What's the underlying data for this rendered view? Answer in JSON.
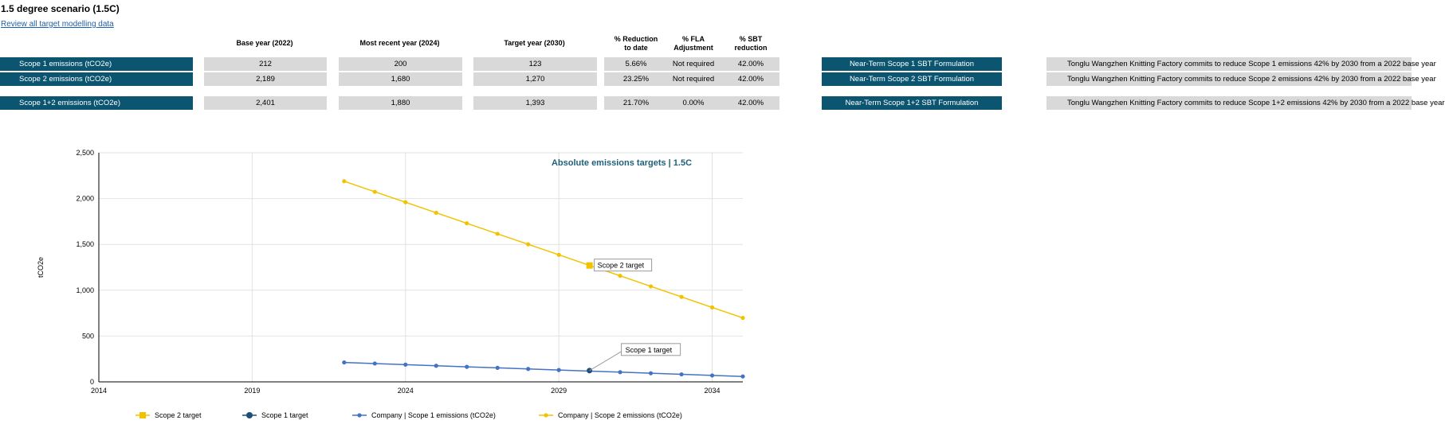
{
  "page": {
    "title": "1.5 degree scenario (1.5C)",
    "review_link": "Review all target modelling data"
  },
  "table": {
    "headers": {
      "base": "Base year (2022)",
      "recent": "Most recent year (2024)",
      "target": "Target year (2030)",
      "reduction_l1": "% Reduction",
      "reduction_l2": "to date",
      "fla_l1": "% FLA",
      "fla_l2": "Adjustment",
      "sbt_l1": "% SBT",
      "sbt_l2": "reduction"
    },
    "rows": [
      {
        "label": "Scope 1 emissions (tCO2e)",
        "base": "212",
        "recent": "200",
        "target": "123",
        "reduction": "5.66%",
        "fla": "Not required",
        "sbt": "42.00%",
        "button": "Near-Term Scope 1 SBT Formulation",
        "commitment": "Tonglu Wangzhen Knitting Factory  commits to reduce Scope 1 emissions 42% by 2030 from a 2022 base year"
      },
      {
        "label": "Scope 2 emissions (tCO2e)",
        "base": "2,189",
        "recent": "1,680",
        "target": "1,270",
        "reduction": "23.25%",
        "fla": "Not required",
        "sbt": "42.00%",
        "button": "Near-Term Scope 2 SBT Formulation",
        "commitment": "Tonglu Wangzhen Knitting Factory  commits to reduce Scope 2 emissions 42% by 2030 from a 2022 base year"
      },
      {
        "label": "Scope 1+2 emissions (tCO2e)",
        "base": "2,401",
        "recent": "1,880",
        "target": "1,393",
        "reduction": "21.70%",
        "fla": "0.00%",
        "sbt": "42.00%",
        "button": "Near-Term Scope 1+2 SBT Formulation",
        "commitment": "Tonglu Wangzhen Knitting Factory  commits to reduce Scope 1+2 emissions 42% by 2030 from a 2022 base year"
      }
    ]
  },
  "chart_data": {
    "type": "line",
    "title": "Absolute emissions targets | 1.5C",
    "ylabel": "tCO2e",
    "xlabel": "",
    "xlim": [
      2014,
      2035
    ],
    "ylim": [
      0,
      2500
    ],
    "xticks": [
      "2014",
      "2019",
      "2024",
      "2029",
      "2034"
    ],
    "yticks": [
      "0",
      "500",
      "1,000",
      "1,500",
      "2,000",
      "2,500"
    ],
    "grid": true,
    "legend_position": "bottom",
    "series": [
      {
        "name": "Scope 2 target",
        "marker": "square",
        "color": "#f2c200",
        "points": [
          {
            "x": 2030,
            "y": 1270
          }
        ],
        "callout": "Scope 2 target"
      },
      {
        "name": "Scope 1 target",
        "marker": "circle",
        "color": "#1f4e79",
        "points": [
          {
            "x": 2030,
            "y": 123
          }
        ],
        "callout": "Scope 1 target"
      },
      {
        "name": "Company | Scope 1 emissions (tCO2e)",
        "marker": "circle",
        "color": "#4472c4",
        "x": [
          2022,
          2023,
          2024,
          2025,
          2026,
          2027,
          2028,
          2029,
          2030,
          2031,
          2032,
          2033,
          2034,
          2035
        ],
        "y": [
          212,
          200,
          188,
          176,
          164,
          153,
          141,
          129,
          117,
          106,
          94,
          82,
          70,
          59
        ]
      },
      {
        "name": "Company | Scope 2 emissions (tCO2e)",
        "marker": "circle",
        "color": "#f2c200",
        "x": [
          2022,
          2023,
          2024,
          2025,
          2026,
          2027,
          2028,
          2029,
          2030,
          2031,
          2032,
          2033,
          2034,
          2035
        ],
        "y": [
          2189,
          2074,
          1960,
          1845,
          1730,
          1615,
          1501,
          1386,
          1271,
          1157,
          1042,
          927,
          812,
          698
        ]
      }
    ]
  }
}
